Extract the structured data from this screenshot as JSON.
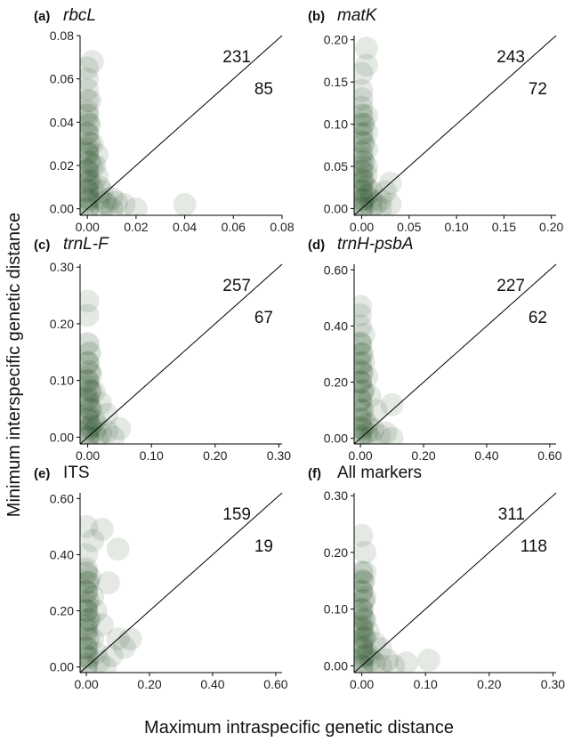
{
  "figure": {
    "ylabel": "Minimum interspecific genetic distance",
    "xlabel": "Maximum intraspecific genetic distance",
    "point_color": "#1f4d1f",
    "point_opacity": 0.12
  },
  "chart_data": [
    {
      "type": "scatter",
      "panel_letter": "(a)",
      "title": "rbcL",
      "title_italic": true,
      "count_above": "231",
      "count_below": "85",
      "xlim": [
        -0.003,
        0.08
      ],
      "ylim": [
        -0.003,
        0.08
      ],
      "xticks": [
        "0.00",
        "0.02",
        "0.04",
        "0.06",
        "0.08"
      ],
      "yticks": [
        "0.00",
        "0.02",
        "0.04",
        "0.06",
        "0.08"
      ],
      "diagonal": true,
      "points": [
        [
          0.0,
          0.065
        ],
        [
          0.0,
          0.06
        ],
        [
          0.0,
          0.055
        ],
        [
          0.0,
          0.05
        ],
        [
          0.0,
          0.045
        ],
        [
          0.002,
          0.068
        ],
        [
          0.0,
          0.04
        ],
        [
          0.0,
          0.035
        ],
        [
          0.002,
          0.03
        ],
        [
          0.0,
          0.028
        ],
        [
          0.0,
          0.025
        ],
        [
          0.002,
          0.02
        ],
        [
          0.0,
          0.018
        ],
        [
          0.0,
          0.015
        ],
        [
          0.0,
          0.012
        ],
        [
          0.002,
          0.01
        ],
        [
          0.0,
          0.008
        ],
        [
          0.0,
          0.005
        ],
        [
          0.0,
          0.003
        ],
        [
          0.0,
          0.0
        ],
        [
          0.004,
          0.015
        ],
        [
          0.005,
          0.01
        ],
        [
          0.006,
          0.008
        ],
        [
          0.005,
          0.005
        ],
        [
          0.007,
          0.003
        ],
        [
          0.006,
          0.0
        ],
        [
          0.008,
          0.002
        ],
        [
          0.01,
          0.005
        ],
        [
          0.01,
          0.0
        ],
        [
          0.012,
          0.003
        ],
        [
          0.015,
          0.002
        ],
        [
          0.02,
          0.0
        ],
        [
          0.04,
          0.002
        ],
        [
          0.003,
          0.02
        ],
        [
          0.004,
          0.025
        ],
        [
          0.001,
          0.05
        ]
      ]
    },
    {
      "type": "scatter",
      "panel_letter": "(b)",
      "title": "matK",
      "title_italic": true,
      "count_above": "243",
      "count_below": "72",
      "xlim": [
        -0.008,
        0.205
      ],
      "ylim": [
        -0.008,
        0.205
      ],
      "xticks": [
        "0.00",
        "0.05",
        "0.10",
        "0.15",
        "0.20"
      ],
      "yticks": [
        "0.00",
        "0.05",
        "0.10",
        "0.15",
        "0.20"
      ],
      "diagonal": true,
      "points": [
        [
          0.005,
          0.19
        ],
        [
          0.005,
          0.17
        ],
        [
          0.0,
          0.16
        ],
        [
          0.0,
          0.14
        ],
        [
          0.0,
          0.12
        ],
        [
          0.0,
          0.1
        ],
        [
          0.005,
          0.09
        ],
        [
          0.0,
          0.08
        ],
        [
          0.005,
          0.07
        ],
        [
          0.0,
          0.06
        ],
        [
          0.0,
          0.05
        ],
        [
          0.005,
          0.04
        ],
        [
          0.0,
          0.035
        ],
        [
          0.0,
          0.03
        ],
        [
          0.0,
          0.02
        ],
        [
          0.005,
          0.015
        ],
        [
          0.0,
          0.01
        ],
        [
          0.0,
          0.005
        ],
        [
          0.0,
          0.0
        ],
        [
          0.01,
          0.02
        ],
        [
          0.01,
          0.01
        ],
        [
          0.015,
          0.005
        ],
        [
          0.01,
          0.0
        ],
        [
          0.02,
          0.01
        ],
        [
          0.02,
          0.0
        ],
        [
          0.03,
          0.03
        ],
        [
          0.025,
          0.02
        ],
        [
          0.03,
          0.005
        ],
        [
          0.005,
          0.11
        ],
        [
          0.0,
          0.13
        ],
        [
          0.005,
          0.05
        ],
        [
          0.005,
          0.025
        ]
      ]
    },
    {
      "type": "scatter",
      "panel_letter": "(c)",
      "title": "trnL-F",
      "title_italic": true,
      "count_above": "257",
      "count_below": "67",
      "xlim": [
        -0.012,
        0.305
      ],
      "ylim": [
        -0.012,
        0.305
      ],
      "xticks": [
        "0.00",
        "0.10",
        "0.20",
        "0.30"
      ],
      "yticks": [
        "0.00",
        "0.10",
        "0.20",
        "0.30"
      ],
      "diagonal": true,
      "points": [
        [
          0.0,
          0.24
        ],
        [
          0.0,
          0.215
        ],
        [
          0.0,
          0.13
        ],
        [
          0.005,
          0.11
        ],
        [
          0.0,
          0.1
        ],
        [
          0.0,
          0.09
        ],
        [
          0.005,
          0.08
        ],
        [
          0.0,
          0.07
        ],
        [
          0.0,
          0.06
        ],
        [
          0.005,
          0.05
        ],
        [
          0.0,
          0.04
        ],
        [
          0.0,
          0.03
        ],
        [
          0.005,
          0.02
        ],
        [
          0.0,
          0.01
        ],
        [
          0.0,
          0.0
        ],
        [
          0.01,
          0.03
        ],
        [
          0.01,
          0.01
        ],
        [
          0.015,
          0.02
        ],
        [
          0.02,
          0.005
        ],
        [
          0.015,
          0.0
        ],
        [
          0.03,
          0.01
        ],
        [
          0.04,
          0.0
        ],
        [
          0.05,
          0.015
        ],
        [
          0.03,
          0.04
        ],
        [
          0.02,
          0.06
        ],
        [
          0.01,
          0.08
        ]
      ]
    },
    {
      "type": "scatter",
      "panel_letter": "(d)",
      "title": "trnH-psbA",
      "title_italic": true,
      "count_above": "227",
      "count_below": "62",
      "xlim": [
        -0.02,
        0.62
      ],
      "ylim": [
        -0.02,
        0.62
      ],
      "xticks": [
        "0.00",
        "0.20",
        "0.40",
        "0.60"
      ],
      "yticks": [
        "0.00",
        "0.20",
        "0.40",
        "0.60"
      ],
      "diagonal": true,
      "points": [
        [
          0.0,
          0.47
        ],
        [
          0.0,
          0.44
        ],
        [
          0.0,
          0.4
        ],
        [
          0.01,
          0.37
        ],
        [
          0.0,
          0.34
        ],
        [
          0.0,
          0.3
        ],
        [
          0.01,
          0.27
        ],
        [
          0.0,
          0.24
        ],
        [
          0.0,
          0.2
        ],
        [
          0.01,
          0.17
        ],
        [
          0.0,
          0.14
        ],
        [
          0.0,
          0.1
        ],
        [
          0.01,
          0.07
        ],
        [
          0.0,
          0.04
        ],
        [
          0.0,
          0.01
        ],
        [
          0.02,
          0.05
        ],
        [
          0.02,
          0.02
        ],
        [
          0.03,
          0.0
        ],
        [
          0.04,
          0.03
        ],
        [
          0.06,
          0.01
        ],
        [
          0.08,
          0.02
        ],
        [
          0.1,
          0.0
        ],
        [
          0.1,
          0.12
        ],
        [
          0.05,
          0.1
        ],
        [
          0.03,
          0.15
        ],
        [
          0.02,
          0.22
        ]
      ]
    },
    {
      "type": "scatter",
      "panel_letter": "(e)",
      "title": "ITS",
      "title_italic": false,
      "count_above": "159",
      "count_below": "19",
      "xlim": [
        -0.02,
        0.62
      ],
      "ylim": [
        -0.02,
        0.62
      ],
      "xticks": [
        "0.00",
        "0.20",
        "0.40",
        "0.60"
      ],
      "yticks": [
        "0.00",
        "0.20",
        "0.40",
        "0.60"
      ],
      "diagonal": true,
      "points": [
        [
          0.0,
          0.5
        ],
        [
          0.05,
          0.49
        ],
        [
          0.02,
          0.45
        ],
        [
          0.1,
          0.42
        ],
        [
          0.0,
          0.4
        ],
        [
          0.0,
          0.35
        ],
        [
          0.01,
          0.32
        ],
        [
          0.0,
          0.3
        ],
        [
          0.0,
          0.27
        ],
        [
          0.02,
          0.25
        ],
        [
          0.0,
          0.22
        ],
        [
          0.0,
          0.2
        ],
        [
          0.01,
          0.17
        ],
        [
          0.0,
          0.15
        ],
        [
          0.0,
          0.12
        ],
        [
          0.02,
          0.1
        ],
        [
          0.0,
          0.07
        ],
        [
          0.0,
          0.04
        ],
        [
          0.0,
          0.01
        ],
        [
          0.03,
          0.05
        ],
        [
          0.04,
          0.02
        ],
        [
          0.06,
          0.0
        ],
        [
          0.08,
          0.04
        ],
        [
          0.1,
          0.1
        ],
        [
          0.12,
          0.07
        ],
        [
          0.14,
          0.1
        ],
        [
          0.05,
          0.15
        ],
        [
          0.03,
          0.2
        ],
        [
          0.07,
          0.3
        ]
      ]
    },
    {
      "type": "scatter",
      "panel_letter": "(f)",
      "title": "All markers",
      "title_italic": false,
      "count_above": "311",
      "count_below": "118",
      "xlim": [
        -0.012,
        0.305
      ],
      "ylim": [
        -0.012,
        0.305
      ],
      "xticks": [
        "0.00",
        "0.10",
        "0.20",
        "0.30"
      ],
      "yticks": [
        "0.00",
        "0.10",
        "0.20",
        "0.30"
      ],
      "diagonal": true,
      "points": [
        [
          0.0,
          0.23
        ],
        [
          0.005,
          0.2
        ],
        [
          0.005,
          0.165
        ],
        [
          0.0,
          0.15
        ],
        [
          0.0,
          0.13
        ],
        [
          0.005,
          0.12
        ],
        [
          0.0,
          0.1
        ],
        [
          0.0,
          0.09
        ],
        [
          0.005,
          0.08
        ],
        [
          0.0,
          0.07
        ],
        [
          0.0,
          0.06
        ],
        [
          0.005,
          0.05
        ],
        [
          0.0,
          0.04
        ],
        [
          0.0,
          0.03
        ],
        [
          0.005,
          0.02
        ],
        [
          0.0,
          0.01
        ],
        [
          0.0,
          0.0
        ],
        [
          0.01,
          0.02
        ],
        [
          0.015,
          0.01
        ],
        [
          0.02,
          0.005
        ],
        [
          0.03,
          0.0
        ],
        [
          0.04,
          0.01
        ],
        [
          0.05,
          0.0
        ],
        [
          0.07,
          0.005
        ],
        [
          0.105,
          0.01
        ],
        [
          0.02,
          0.04
        ],
        [
          0.03,
          0.03
        ],
        [
          0.01,
          0.06
        ]
      ]
    }
  ]
}
